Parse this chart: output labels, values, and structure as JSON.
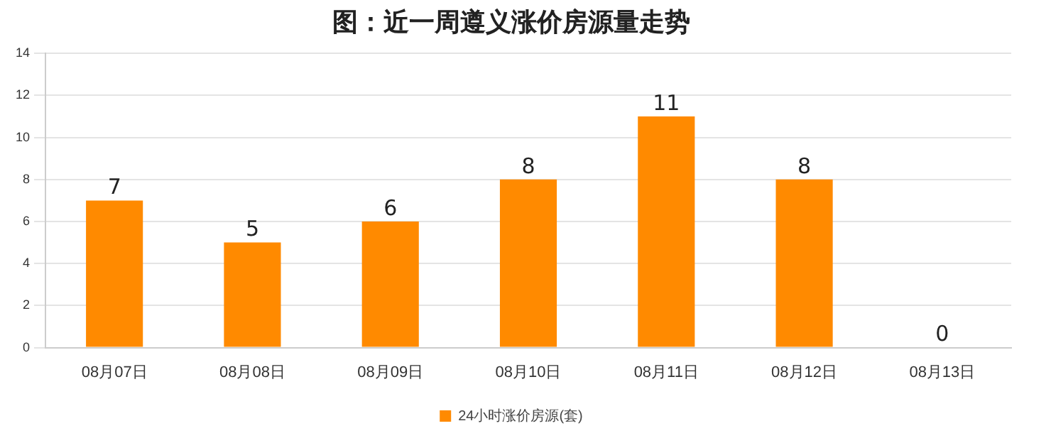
{
  "chart_data": {
    "type": "bar",
    "title": "图：近一周遵义涨价房源量走势",
    "categories": [
      "08月07日",
      "08月08日",
      "08月09日",
      "08月10日",
      "08月11日",
      "08月12日",
      "08月13日"
    ],
    "series": [
      {
        "name": "24小时涨价房源(套)",
        "color": "#ff8a00",
        "values": [
          7,
          5,
          6,
          8,
          11,
          8,
          0
        ]
      }
    ],
    "ylim": [
      0,
      14
    ],
    "yticks": [
      0,
      2,
      4,
      6,
      8,
      10,
      12,
      14
    ],
    "grid": "y",
    "legend": "bottom",
    "data_labels": true
  }
}
